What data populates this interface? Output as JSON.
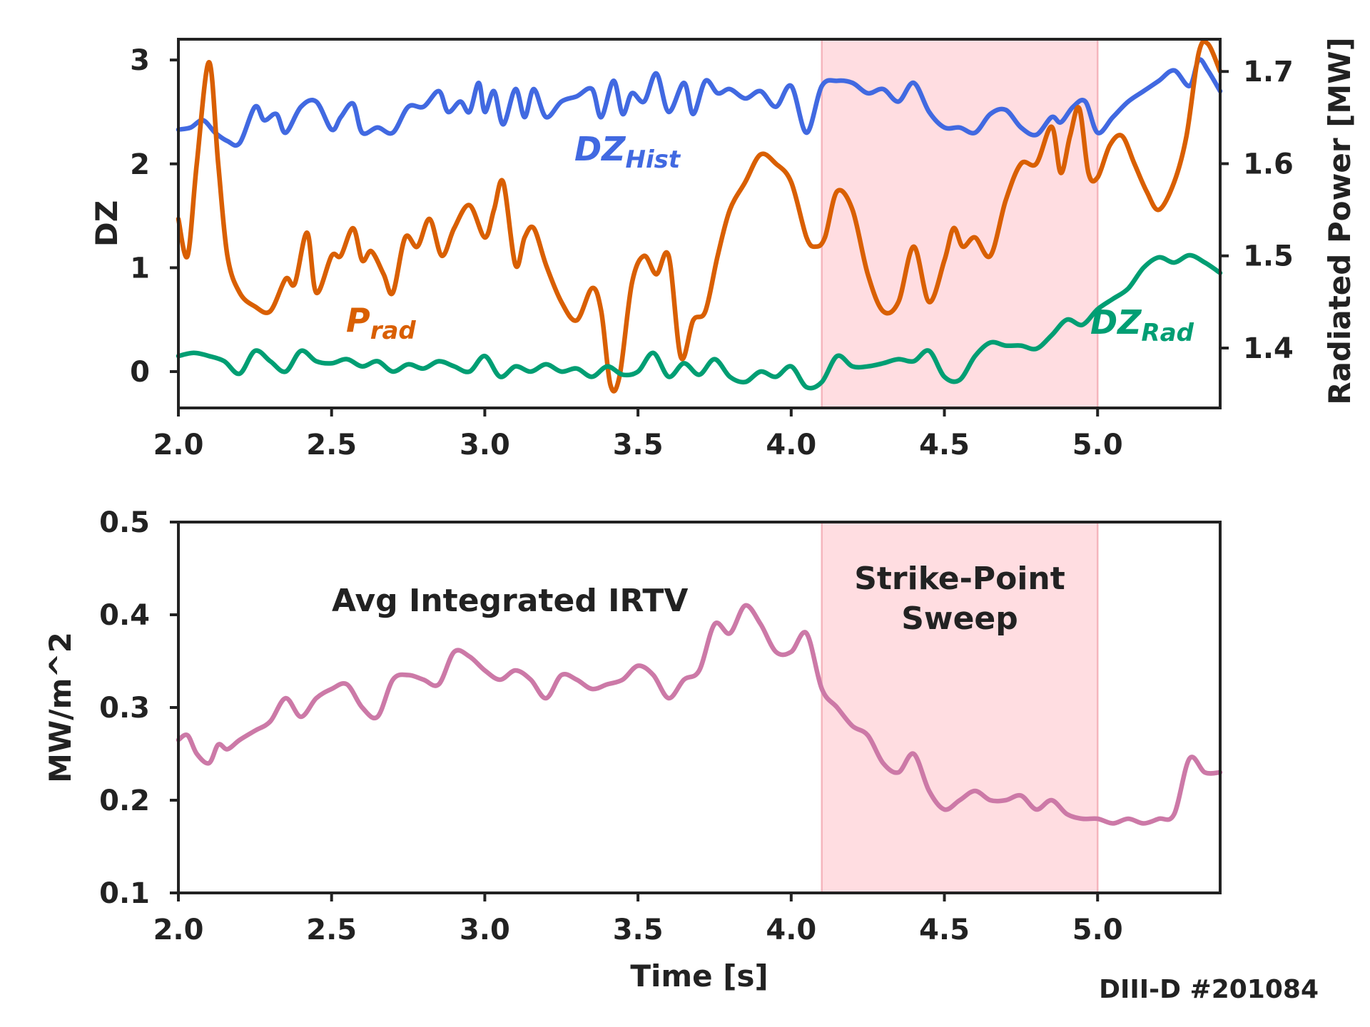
{
  "footer": {
    "shot_label": "DIII-D #201084"
  },
  "chart_data": [
    {
      "type": "line",
      "xlim": [
        2.0,
        5.4
      ],
      "ylim_left": [
        -0.35,
        3.2
      ],
      "ylim_right": [
        1.335,
        1.735
      ],
      "xticks": [
        "2.0",
        "2.5",
        "3.0",
        "3.5",
        "4.0",
        "4.5",
        "5.0"
      ],
      "yticks_left": [
        "0",
        "1",
        "2",
        "3"
      ],
      "yticks_right": [
        "1.4",
        "1.5",
        "1.6",
        "1.7"
      ],
      "ylabel_left": "DZ",
      "ylabel_right": "Radiated Power [MW]",
      "shaded_region": {
        "x": [
          4.1,
          5.0
        ],
        "color": "#ffdde1"
      },
      "series": [
        {
          "name": "DZ_Hist",
          "label_main": "DZ",
          "label_sub": "Hist",
          "axis": "left",
          "color": "#4169e1",
          "x": [
            2.0,
            2.04,
            2.08,
            2.12,
            2.16,
            2.2,
            2.25,
            2.28,
            2.32,
            2.35,
            2.4,
            2.45,
            2.5,
            2.53,
            2.57,
            2.6,
            2.65,
            2.7,
            2.75,
            2.8,
            2.85,
            2.88,
            2.92,
            2.95,
            2.98,
            3.0,
            3.03,
            3.06,
            3.1,
            3.13,
            3.16,
            3.2,
            3.25,
            3.3,
            3.35,
            3.38,
            3.42,
            3.45,
            3.48,
            3.52,
            3.56,
            3.6,
            3.65,
            3.68,
            3.72,
            3.76,
            3.8,
            3.85,
            3.9,
            3.95,
            4.0,
            4.05,
            4.1,
            4.15,
            4.2,
            4.25,
            4.3,
            4.35,
            4.4,
            4.45,
            4.5,
            4.55,
            4.6,
            4.65,
            4.7,
            4.75,
            4.8,
            4.85,
            4.88,
            4.92,
            4.96,
            5.0,
            5.05,
            5.1,
            5.15,
            5.2,
            5.25,
            5.3,
            5.33,
            5.36,
            5.4
          ],
          "y": [
            2.33,
            2.35,
            2.42,
            2.3,
            2.22,
            2.2,
            2.55,
            2.42,
            2.48,
            2.3,
            2.55,
            2.6,
            2.33,
            2.45,
            2.58,
            2.3,
            2.35,
            2.3,
            2.55,
            2.55,
            2.7,
            2.5,
            2.6,
            2.5,
            2.78,
            2.5,
            2.7,
            2.38,
            2.72,
            2.45,
            2.72,
            2.45,
            2.6,
            2.65,
            2.72,
            2.45,
            2.8,
            2.48,
            2.68,
            2.6,
            2.87,
            2.5,
            2.78,
            2.48,
            2.8,
            2.68,
            2.72,
            2.63,
            2.7,
            2.55,
            2.75,
            2.3,
            2.75,
            2.8,
            2.78,
            2.68,
            2.72,
            2.6,
            2.78,
            2.5,
            2.35,
            2.35,
            2.3,
            2.48,
            2.52,
            2.35,
            2.28,
            2.45,
            2.4,
            2.55,
            2.6,
            2.3,
            2.45,
            2.6,
            2.7,
            2.8,
            2.9,
            2.75,
            3.0,
            2.9,
            2.7
          ]
        },
        {
          "name": "P_rad",
          "label_main": "P",
          "label_sub": "rad",
          "axis": "right",
          "color": "#d95f02",
          "x": [
            2.0,
            2.03,
            2.06,
            2.1,
            2.13,
            2.16,
            2.2,
            2.25,
            2.3,
            2.35,
            2.38,
            2.42,
            2.45,
            2.5,
            2.53,
            2.57,
            2.6,
            2.63,
            2.67,
            2.7,
            2.74,
            2.78,
            2.82,
            2.86,
            2.9,
            2.95,
            3.0,
            3.03,
            3.06,
            3.1,
            3.13,
            3.16,
            3.2,
            3.25,
            3.3,
            3.35,
            3.38,
            3.41,
            3.44,
            3.48,
            3.52,
            3.56,
            3.6,
            3.64,
            3.68,
            3.72,
            3.76,
            3.8,
            3.85,
            3.9,
            3.95,
            4.0,
            4.05,
            4.08,
            4.11,
            4.15,
            4.2,
            4.25,
            4.3,
            4.35,
            4.4,
            4.45,
            4.5,
            4.53,
            4.56,
            4.6,
            4.65,
            4.7,
            4.75,
            4.8,
            4.85,
            4.88,
            4.91,
            4.94,
            4.97,
            5.0,
            5.04,
            5.08,
            5.12,
            5.16,
            5.2,
            5.25,
            5.29,
            5.33,
            5.36,
            5.4
          ],
          "y": [
            1.54,
            1.5,
            1.6,
            1.71,
            1.6,
            1.5,
            1.46,
            1.445,
            1.44,
            1.475,
            1.47,
            1.525,
            1.46,
            1.5,
            1.5,
            1.53,
            1.495,
            1.505,
            1.48,
            1.46,
            1.52,
            1.51,
            1.54,
            1.5,
            1.53,
            1.555,
            1.52,
            1.55,
            1.58,
            1.49,
            1.52,
            1.53,
            1.49,
            1.45,
            1.43,
            1.465,
            1.44,
            1.36,
            1.37,
            1.47,
            1.5,
            1.48,
            1.5,
            1.39,
            1.43,
            1.44,
            1.5,
            1.55,
            1.58,
            1.61,
            1.6,
            1.58,
            1.52,
            1.51,
            1.52,
            1.57,
            1.55,
            1.48,
            1.44,
            1.45,
            1.51,
            1.45,
            1.495,
            1.53,
            1.51,
            1.52,
            1.5,
            1.56,
            1.6,
            1.6,
            1.64,
            1.59,
            1.63,
            1.66,
            1.59,
            1.585,
            1.62,
            1.63,
            1.6,
            1.57,
            1.55,
            1.58,
            1.63,
            1.72,
            1.73,
            1.7
          ]
        },
        {
          "name": "DZ_Rad",
          "label_main": "DZ",
          "label_sub": "Rad",
          "axis": "left",
          "color": "#009e73",
          "x": [
            2.0,
            2.05,
            2.1,
            2.15,
            2.2,
            2.25,
            2.3,
            2.35,
            2.4,
            2.45,
            2.5,
            2.55,
            2.6,
            2.65,
            2.7,
            2.75,
            2.8,
            2.85,
            2.9,
            2.95,
            3.0,
            3.05,
            3.1,
            3.15,
            3.2,
            3.25,
            3.3,
            3.35,
            3.4,
            3.45,
            3.5,
            3.55,
            3.6,
            3.65,
            3.7,
            3.75,
            3.8,
            3.85,
            3.9,
            3.95,
            4.0,
            4.05,
            4.1,
            4.15,
            4.2,
            4.25,
            4.3,
            4.35,
            4.4,
            4.45,
            4.5,
            4.55,
            4.6,
            4.65,
            4.7,
            4.75,
            4.8,
            4.85,
            4.9,
            4.95,
            5.0,
            5.05,
            5.1,
            5.15,
            5.2,
            5.25,
            5.3,
            5.35,
            5.4
          ],
          "y": [
            0.15,
            0.18,
            0.15,
            0.1,
            -0.02,
            0.2,
            0.1,
            0.0,
            0.2,
            0.1,
            0.08,
            0.12,
            0.05,
            0.1,
            0.0,
            0.07,
            0.03,
            0.1,
            0.05,
            0.0,
            0.15,
            -0.05,
            0.05,
            0.0,
            0.07,
            0.0,
            0.03,
            -0.05,
            0.05,
            -0.03,
            0.0,
            0.18,
            -0.05,
            0.08,
            -0.03,
            0.12,
            -0.05,
            -0.1,
            0.0,
            -0.05,
            0.05,
            -0.15,
            -0.1,
            0.15,
            0.05,
            0.05,
            0.08,
            0.12,
            0.1,
            0.2,
            -0.05,
            -0.08,
            0.15,
            0.28,
            0.25,
            0.25,
            0.22,
            0.35,
            0.5,
            0.45,
            0.6,
            0.7,
            0.8,
            1.0,
            1.1,
            1.05,
            1.12,
            1.05,
            0.95
          ]
        }
      ]
    },
    {
      "type": "line",
      "xlim": [
        2.0,
        5.4
      ],
      "ylim": [
        0.1,
        0.5
      ],
      "xticks": [
        "2.0",
        "2.5",
        "3.0",
        "3.5",
        "4.0",
        "4.5",
        "5.0"
      ],
      "yticks": [
        "0.1",
        "0.2",
        "0.3",
        "0.4",
        "0.5"
      ],
      "xlabel": "Time [s]",
      "ylabel": "MW/m^2",
      "shaded_region": {
        "x": [
          4.1,
          5.0
        ],
        "color": "#ffdde1"
      },
      "annotation": {
        "line1": "Strike-Point",
        "line2": "Sweep",
        "color": "#ff0000"
      },
      "series": [
        {
          "name": "Avg Integrated IRTV",
          "color": "#cc79a7",
          "x": [
            2.0,
            2.03,
            2.06,
            2.1,
            2.13,
            2.16,
            2.2,
            2.25,
            2.3,
            2.35,
            2.4,
            2.45,
            2.5,
            2.55,
            2.6,
            2.65,
            2.7,
            2.75,
            2.8,
            2.85,
            2.9,
            2.95,
            3.0,
            3.05,
            3.1,
            3.15,
            3.2,
            3.25,
            3.3,
            3.35,
            3.4,
            3.45,
            3.5,
            3.55,
            3.6,
            3.65,
            3.7,
            3.75,
            3.8,
            3.85,
            3.9,
            3.95,
            4.0,
            4.05,
            4.1,
            4.15,
            4.2,
            4.25,
            4.3,
            4.35,
            4.4,
            4.45,
            4.5,
            4.55,
            4.6,
            4.65,
            4.7,
            4.75,
            4.8,
            4.85,
            4.9,
            4.95,
            5.0,
            5.05,
            5.1,
            5.15,
            5.2,
            5.25,
            5.3,
            5.35,
            5.4
          ],
          "y": [
            0.265,
            0.27,
            0.25,
            0.24,
            0.26,
            0.255,
            0.265,
            0.275,
            0.285,
            0.31,
            0.29,
            0.31,
            0.32,
            0.325,
            0.3,
            0.29,
            0.33,
            0.335,
            0.33,
            0.325,
            0.36,
            0.355,
            0.34,
            0.33,
            0.34,
            0.33,
            0.31,
            0.335,
            0.33,
            0.32,
            0.325,
            0.33,
            0.345,
            0.335,
            0.31,
            0.33,
            0.34,
            0.39,
            0.38,
            0.41,
            0.39,
            0.36,
            0.36,
            0.38,
            0.32,
            0.3,
            0.28,
            0.27,
            0.24,
            0.23,
            0.25,
            0.21,
            0.19,
            0.2,
            0.21,
            0.2,
            0.2,
            0.205,
            0.19,
            0.2,
            0.185,
            0.18,
            0.18,
            0.175,
            0.18,
            0.175,
            0.18,
            0.185,
            0.245,
            0.23,
            0.23
          ]
        }
      ]
    }
  ]
}
